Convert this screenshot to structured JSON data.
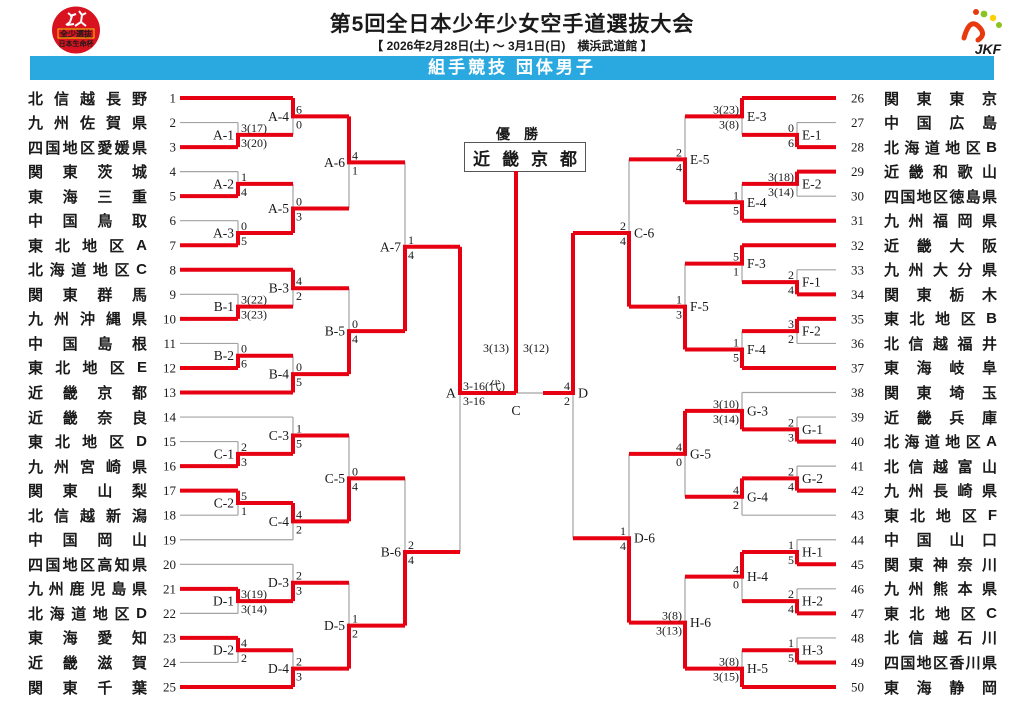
{
  "header": {
    "title": "第5回全日本少年少女空手道選抜大会",
    "subtitle": "【 2026年2月28日(土) ～ 3月1日(日)　横浜武道館 】",
    "banner": "組手競技 団体男子",
    "left_badge": {
      "line1": "全少選抜",
      "line2": "日本生命杯"
    },
    "jkf_label": "JKF"
  },
  "champion": {
    "label": "優勝",
    "name": "近畿京都"
  },
  "colors": {
    "red": "#e60012",
    "line_gray": "#a3a3a3",
    "banner_blue": "#2aa9e0",
    "jkf_blue": "#1d50a2"
  },
  "bracket": {
    "teams": [
      {
        "n": 1,
        "name": "北信越長野"
      },
      {
        "n": 2,
        "name": "九州佐賀県"
      },
      {
        "n": 3,
        "name": "四国地区愛媛県"
      },
      {
        "n": 4,
        "name": "関東茨城"
      },
      {
        "n": 5,
        "name": "東海三重"
      },
      {
        "n": 6,
        "name": "中国鳥取"
      },
      {
        "n": 7,
        "name": "東北地区A"
      },
      {
        "n": 8,
        "name": "北海道地区C"
      },
      {
        "n": 9,
        "name": "関東群馬"
      },
      {
        "n": 10,
        "name": "九州沖縄県"
      },
      {
        "n": 11,
        "name": "中国島根"
      },
      {
        "n": 12,
        "name": "東北地区E"
      },
      {
        "n": 13,
        "name": "近畿京都"
      },
      {
        "n": 14,
        "name": "近畿奈良"
      },
      {
        "n": 15,
        "name": "東北地区D"
      },
      {
        "n": 16,
        "name": "九州宮崎県"
      },
      {
        "n": 17,
        "name": "関東山梨"
      },
      {
        "n": 18,
        "name": "北信越新潟"
      },
      {
        "n": 19,
        "name": "中国岡山"
      },
      {
        "n": 20,
        "name": "四国地区高知県"
      },
      {
        "n": 21,
        "name": "九州鹿児島県"
      },
      {
        "n": 22,
        "name": "北海道地区D"
      },
      {
        "n": 23,
        "name": "東海愛知"
      },
      {
        "n": 24,
        "name": "近畿滋賀"
      },
      {
        "n": 25,
        "name": "関東千葉"
      },
      {
        "n": 26,
        "name": "関東東京"
      },
      {
        "n": 27,
        "name": "中国広島"
      },
      {
        "n": 28,
        "name": "北海道地区B"
      },
      {
        "n": 29,
        "name": "近畿和歌山"
      },
      {
        "n": 30,
        "name": "四国地区徳島県"
      },
      {
        "n": 31,
        "name": "九州福岡県"
      },
      {
        "n": 32,
        "name": "近畿大阪"
      },
      {
        "n": 33,
        "name": "九州大分県"
      },
      {
        "n": 34,
        "name": "関東栃木"
      },
      {
        "n": 35,
        "name": "東北地区B"
      },
      {
        "n": 36,
        "name": "北信越福井"
      },
      {
        "n": 37,
        "name": "東海岐阜"
      },
      {
        "n": 38,
        "name": "関東埼玉"
      },
      {
        "n": 39,
        "name": "近畿兵庫"
      },
      {
        "n": 40,
        "name": "北海道地区A"
      },
      {
        "n": 41,
        "name": "北信越富山"
      },
      {
        "n": 42,
        "name": "九州長崎県"
      },
      {
        "n": 43,
        "name": "東北地区F"
      },
      {
        "n": 44,
        "name": "中国山口"
      },
      {
        "n": 45,
        "name": "関東神奈川"
      },
      {
        "n": 46,
        "name": "九州熊本県"
      },
      {
        "n": 47,
        "name": "東北地区C"
      },
      {
        "n": 48,
        "name": "北信越石川"
      },
      {
        "n": 49,
        "name": "四国地区香川県"
      },
      {
        "n": 50,
        "name": "東海静岡"
      }
    ],
    "matches": [
      {
        "code": "A-1",
        "side": "L",
        "round": 1,
        "top": {
          "team": 2
        },
        "bottom": {
          "team": 3
        },
        "s_top": "3(17)",
        "s_bot": "3(20)",
        "win": "B"
      },
      {
        "code": "A-2",
        "side": "L",
        "round": 1,
        "top": {
          "team": 4
        },
        "bottom": {
          "team": 5
        },
        "s_top": "1",
        "s_bot": "4",
        "win": "B"
      },
      {
        "code": "A-3",
        "side": "L",
        "round": 1,
        "top": {
          "team": 6
        },
        "bottom": {
          "team": 7
        },
        "s_top": "0",
        "s_bot": "5",
        "win": "B"
      },
      {
        "code": "B-1",
        "side": "L",
        "round": 1,
        "top": {
          "team": 9
        },
        "bottom": {
          "team": 10
        },
        "s_top": "3(22)",
        "s_bot": "3(23)",
        "win": "B"
      },
      {
        "code": "B-2",
        "side": "L",
        "round": 1,
        "top": {
          "team": 11
        },
        "bottom": {
          "team": 12
        },
        "s_top": "0",
        "s_bot": "6",
        "win": "B"
      },
      {
        "code": "C-1",
        "side": "L",
        "round": 1,
        "top": {
          "team": 15
        },
        "bottom": {
          "team": 16
        },
        "s_top": "2",
        "s_bot": "3",
        "win": "B"
      },
      {
        "code": "C-2",
        "side": "L",
        "round": 1,
        "top": {
          "team": 17
        },
        "bottom": {
          "team": 18
        },
        "s_top": "5",
        "s_bot": "1",
        "win": "T"
      },
      {
        "code": "D-1",
        "side": "L",
        "round": 1,
        "top": {
          "team": 21
        },
        "bottom": {
          "team": 22
        },
        "s_top": "3(19)",
        "s_bot": "3(14)",
        "win": "T"
      },
      {
        "code": "D-2",
        "side": "L",
        "round": 1,
        "top": {
          "team": 23
        },
        "bottom": {
          "team": 24
        },
        "s_top": "4",
        "s_bot": "2",
        "win": "T"
      },
      {
        "code": "E-1",
        "side": "R",
        "round": 1,
        "top": {
          "team": 27
        },
        "bottom": {
          "team": 28
        },
        "s_top": "0",
        "s_bot": "6",
        "win": "B"
      },
      {
        "code": "E-2",
        "side": "R",
        "round": 1,
        "top": {
          "team": 29
        },
        "bottom": {
          "team": 30
        },
        "s_top": "3(18)",
        "s_bot": "3(14)",
        "win": "T"
      },
      {
        "code": "F-1",
        "side": "R",
        "round": 1,
        "top": {
          "team": 33
        },
        "bottom": {
          "team": 34
        },
        "s_top": "2",
        "s_bot": "4",
        "win": "B"
      },
      {
        "code": "F-2",
        "side": "R",
        "round": 1,
        "top": {
          "team": 35
        },
        "bottom": {
          "team": 36
        },
        "s_top": "3",
        "s_bot": "2",
        "win": "T"
      },
      {
        "code": "G-1",
        "side": "R",
        "round": 1,
        "top": {
          "team": 39
        },
        "bottom": {
          "team": 40
        },
        "s_top": "2",
        "s_bot": "3",
        "win": "B"
      },
      {
        "code": "G-2",
        "side": "R",
        "round": 1,
        "top": {
          "team": 41
        },
        "bottom": {
          "team": 42
        },
        "s_top": "2",
        "s_bot": "4",
        "win": "B"
      },
      {
        "code": "H-1",
        "side": "R",
        "round": 1,
        "top": {
          "team": 44
        },
        "bottom": {
          "team": 45
        },
        "s_top": "1",
        "s_bot": "5",
        "win": "B"
      },
      {
        "code": "H-2",
        "side": "R",
        "round": 1,
        "top": {
          "team": 46
        },
        "bottom": {
          "team": 47
        },
        "s_top": "2",
        "s_bot": "4",
        "win": "B"
      },
      {
        "code": "H-3",
        "side": "R",
        "round": 1,
        "top": {
          "team": 48
        },
        "bottom": {
          "team": 49
        },
        "s_top": "1",
        "s_bot": "5",
        "win": "B"
      },
      {
        "code": "A-4",
        "side": "L",
        "round": 2,
        "top": {
          "team": 1
        },
        "bottom": {
          "match": "A-1"
        },
        "s_top": "6",
        "s_bot": "0",
        "win": "T"
      },
      {
        "code": "A-5",
        "side": "L",
        "round": 2,
        "top": {
          "match": "A-2"
        },
        "bottom": {
          "match": "A-3"
        },
        "s_top": "0",
        "s_bot": "3",
        "win": "B"
      },
      {
        "code": "B-3",
        "side": "L",
        "round": 2,
        "top": {
          "team": 8
        },
        "bottom": {
          "match": "B-1"
        },
        "s_top": "4",
        "s_bot": "2",
        "win": "T"
      },
      {
        "code": "B-4",
        "side": "L",
        "round": 2,
        "top": {
          "match": "B-2"
        },
        "bottom": {
          "team": 13
        },
        "s_top": "0",
        "s_bot": "5",
        "win": "B"
      },
      {
        "code": "C-3",
        "side": "L",
        "round": 2,
        "top": {
          "team": 14
        },
        "bottom": {
          "match": "C-1"
        },
        "s_top": "1",
        "s_bot": "5",
        "win": "B"
      },
      {
        "code": "C-4",
        "side": "L",
        "round": 2,
        "top": {
          "match": "C-2"
        },
        "bottom": {
          "team": 19
        },
        "s_top": "4",
        "s_bot": "2",
        "win": "T"
      },
      {
        "code": "D-3",
        "side": "L",
        "round": 2,
        "top": {
          "team": 20
        },
        "bottom": {
          "match": "D-1"
        },
        "s_top": "2",
        "s_bot": "3",
        "win": "B"
      },
      {
        "code": "D-4",
        "side": "L",
        "round": 2,
        "top": {
          "match": "D-2"
        },
        "bottom": {
          "team": 25
        },
        "s_top": "2",
        "s_bot": "3",
        "win": "B"
      },
      {
        "code": "E-3",
        "side": "R",
        "round": 2,
        "top": {
          "team": 26
        },
        "bottom": {
          "match": "E-1"
        },
        "s_top": "3(23)",
        "s_bot": "3(8)",
        "win": "T"
      },
      {
        "code": "E-4",
        "side": "R",
        "round": 2,
        "top": {
          "match": "E-2"
        },
        "bottom": {
          "team": 31
        },
        "s_top": "1",
        "s_bot": "5",
        "win": "B"
      },
      {
        "code": "F-3",
        "side": "R",
        "round": 2,
        "top": {
          "team": 32
        },
        "bottom": {
          "match": "F-1"
        },
        "s_top": "5",
        "s_bot": "1",
        "win": "T"
      },
      {
        "code": "F-4",
        "side": "R",
        "round": 2,
        "top": {
          "match": "F-2"
        },
        "bottom": {
          "team": 37
        },
        "s_top": "1",
        "s_bot": "5",
        "win": "B"
      },
      {
        "code": "G-3",
        "side": "R",
        "round": 2,
        "top": {
          "team": 38
        },
        "bottom": {
          "match": "G-1"
        },
        "s_top": "3(10)",
        "s_bot": "3(14)",
        "win": "B"
      },
      {
        "code": "G-4",
        "side": "R",
        "round": 2,
        "top": {
          "match": "G-2"
        },
        "bottom": {
          "team": 43
        },
        "s_top": "4",
        "s_bot": "2",
        "win": "T"
      },
      {
        "code": "H-4",
        "side": "R",
        "round": 2,
        "top": {
          "match": "H-1"
        },
        "bottom": {
          "match": "H-2"
        },
        "s_top": "4",
        "s_bot": "0",
        "win": "T"
      },
      {
        "code": "H-5",
        "side": "R",
        "round": 2,
        "top": {
          "match": "H-3"
        },
        "bottom": {
          "team": 50
        },
        "s_top": "3(8)",
        "s_bot": "3(15)",
        "win": "B"
      },
      {
        "code": "A-6",
        "side": "L",
        "round": 3,
        "top": {
          "match": "A-4"
        },
        "bottom": {
          "match": "A-5"
        },
        "s_top": "4",
        "s_bot": "1",
        "win": "T"
      },
      {
        "code": "B-5",
        "side": "L",
        "round": 3,
        "top": {
          "match": "B-3"
        },
        "bottom": {
          "match": "B-4"
        },
        "s_top": "0",
        "s_bot": "4",
        "win": "B"
      },
      {
        "code": "C-5",
        "side": "L",
        "round": 3,
        "top": {
          "match": "C-3"
        },
        "bottom": {
          "match": "C-4"
        },
        "s_top": "0",
        "s_bot": "4",
        "win": "B"
      },
      {
        "code": "D-5",
        "side": "L",
        "round": 3,
        "top": {
          "match": "D-3"
        },
        "bottom": {
          "match": "D-4"
        },
        "s_top": "1",
        "s_bot": "2",
        "win": "B"
      },
      {
        "code": "E-5",
        "side": "R",
        "round": 3,
        "top": {
          "match": "E-3"
        },
        "bottom": {
          "match": "E-4"
        },
        "s_top": "2",
        "s_bot": "4",
        "win": "B"
      },
      {
        "code": "F-5",
        "side": "R",
        "round": 3,
        "top": {
          "match": "F-3"
        },
        "bottom": {
          "match": "F-4"
        },
        "s_top": "1",
        "s_bot": "3",
        "win": "B"
      },
      {
        "code": "G-5",
        "side": "R",
        "round": 3,
        "top": {
          "match": "G-3"
        },
        "bottom": {
          "match": "G-4"
        },
        "s_top": "4",
        "s_bot": "0",
        "win": "T"
      },
      {
        "code": "H-6",
        "side": "R",
        "round": 3,
        "top": {
          "match": "H-4"
        },
        "bottom": {
          "match": "H-5"
        },
        "s_top": "3(8)",
        "s_bot": "3(13)",
        "win": "B"
      },
      {
        "code": "A-7",
        "side": "L",
        "round": 4,
        "top": {
          "match": "A-6"
        },
        "bottom": {
          "match": "B-5"
        },
        "s_top": "1",
        "s_bot": "4",
        "win": "B"
      },
      {
        "code": "B-6",
        "side": "L",
        "round": 4,
        "top": {
          "match": "C-5"
        },
        "bottom": {
          "match": "D-5"
        },
        "s_top": "2",
        "s_bot": "4",
        "win": "B"
      },
      {
        "code": "C-6",
        "side": "R",
        "round": 4,
        "top": {
          "match": "E-5"
        },
        "bottom": {
          "match": "F-5"
        },
        "s_top": "2",
        "s_bot": "4",
        "win": "B"
      },
      {
        "code": "D-6",
        "side": "R",
        "round": 4,
        "top": {
          "match": "G-5"
        },
        "bottom": {
          "match": "H-6"
        },
        "s_top": "1",
        "s_bot": "4",
        "win": "B"
      },
      {
        "code": "A",
        "side": "L",
        "round": 5,
        "top": {
          "match": "A-7"
        },
        "bottom": {
          "match": "B-6"
        },
        "s_top": "3-16(代)",
        "s_bot": "3-16",
        "win": "T"
      },
      {
        "code": "D",
        "side": "R",
        "round": 5,
        "top": {
          "match": "C-6"
        },
        "bottom": {
          "match": "D-6"
        },
        "s_top": "4",
        "s_bot": "2",
        "win": "T"
      },
      {
        "code": "C",
        "side": "F",
        "round": 6,
        "top": {
          "match": "A"
        },
        "bottom": {
          "match": "D"
        },
        "s_top": "3(13)",
        "s_bot": "3(12)",
        "win": "T"
      }
    ]
  }
}
